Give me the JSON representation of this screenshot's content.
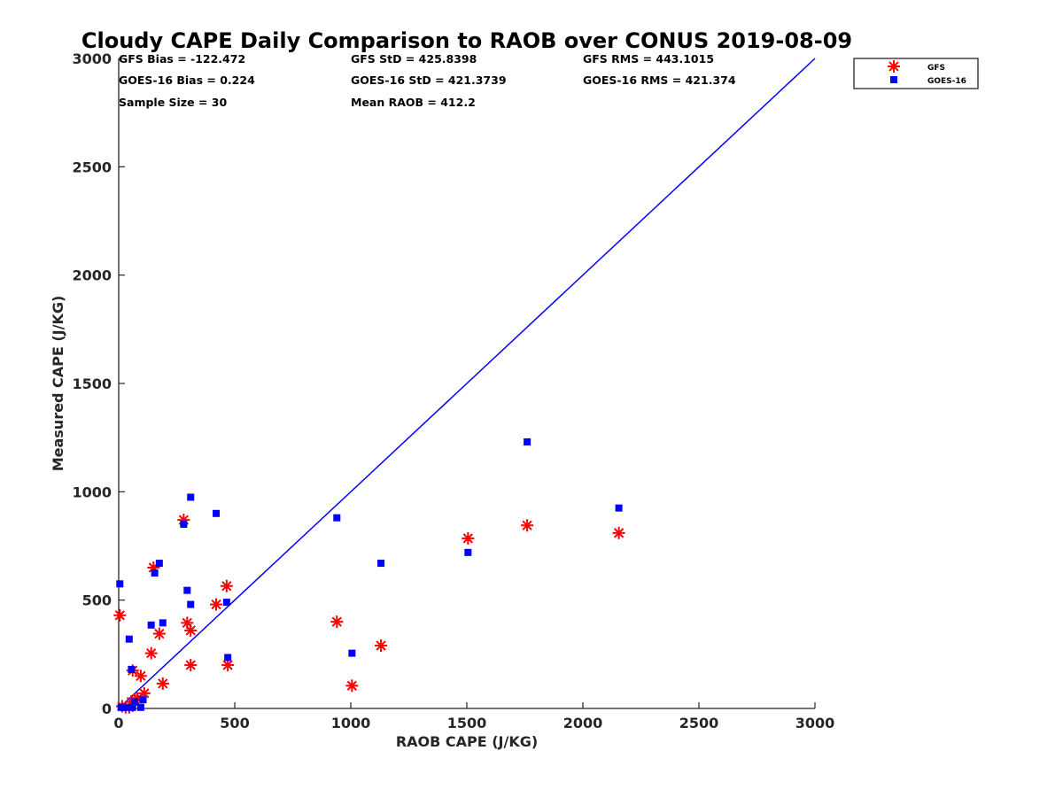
{
  "chart_data": {
    "type": "scatter",
    "title": "Cloudy CAPE Daily Comparison to RAOB over CONUS 2019-08-09",
    "xlabel": "RAOB CAPE (J/KG)",
    "ylabel": "Measured CAPE (J/KG)",
    "xlim": [
      0,
      3000
    ],
    "ylim": [
      0,
      3000
    ],
    "x_ticks": [
      "0",
      "500",
      "1000",
      "1500",
      "2000",
      "2500",
      "3000"
    ],
    "y_ticks": [
      "0",
      "500",
      "1000",
      "1500",
      "2000",
      "2500",
      "3000"
    ],
    "grid": false,
    "legend_position": "top-right",
    "reference_line": {
      "type": "one-to-one",
      "from": [
        0,
        0
      ],
      "to": [
        3000,
        3000
      ],
      "color": "#0000ff"
    },
    "stats": [
      "GFS Bias = -122.472",
      "GFS StD = 425.8398",
      "GFS RMS = 443.1015",
      "GOES-16 Bias = 0.224",
      "GOES-16 StD = 421.3739",
      "GOES-16 RMS = 421.374",
      "Sample Size = 30",
      "Mean RAOB = 412.2"
    ],
    "series": [
      {
        "name": "GFS",
        "marker": "asterisk",
        "color": "#ff0000",
        "points": [
          [
            5,
            430
          ],
          [
            15,
            10
          ],
          [
            30,
            5
          ],
          [
            45,
            5
          ],
          [
            55,
            30
          ],
          [
            60,
            175
          ],
          [
            70,
            40
          ],
          [
            80,
            45
          ],
          [
            95,
            150
          ],
          [
            110,
            70
          ],
          [
            140,
            255
          ],
          [
            150,
            650
          ],
          [
            175,
            345
          ],
          [
            190,
            115
          ],
          [
            280,
            870
          ],
          [
            295,
            395
          ],
          [
            310,
            200
          ],
          [
            310,
            360
          ],
          [
            420,
            480
          ],
          [
            465,
            565
          ],
          [
            470,
            200
          ],
          [
            940,
            400
          ],
          [
            1005,
            105
          ],
          [
            1130,
            290
          ],
          [
            1505,
            785
          ],
          [
            1760,
            845
          ],
          [
            2155,
            810
          ]
        ]
      },
      {
        "name": "GOES-16",
        "marker": "square",
        "color": "#0000ff",
        "points": [
          [
            5,
            575
          ],
          [
            10,
            5
          ],
          [
            20,
            5
          ],
          [
            35,
            5
          ],
          [
            45,
            320
          ],
          [
            55,
            180
          ],
          [
            60,
            5
          ],
          [
            70,
            30
          ],
          [
            95,
            5
          ],
          [
            105,
            40
          ],
          [
            140,
            385
          ],
          [
            155,
            625
          ],
          [
            175,
            670
          ],
          [
            190,
            395
          ],
          [
            280,
            850
          ],
          [
            295,
            545
          ],
          [
            310,
            480
          ],
          [
            310,
            975
          ],
          [
            420,
            900
          ],
          [
            465,
            490
          ],
          [
            470,
            235
          ],
          [
            940,
            880
          ],
          [
            1005,
            255
          ],
          [
            1130,
            670
          ],
          [
            1505,
            720
          ],
          [
            1760,
            1230
          ],
          [
            2155,
            925
          ]
        ]
      }
    ]
  }
}
